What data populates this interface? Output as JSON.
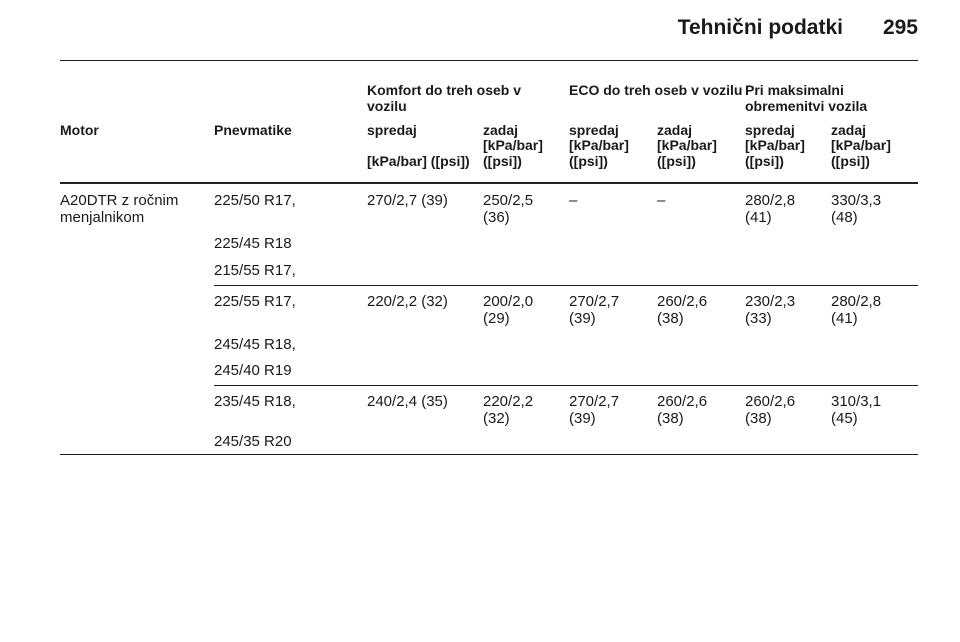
{
  "header": {
    "title": "Tehnični podatki",
    "page": "295"
  },
  "table": {
    "groups": [
      "Komfort do treh oseb v vozilu",
      "ECO do treh oseb v vozilu",
      "Pri maksimalni obremenitvi vozila"
    ],
    "columns": [
      "Motor",
      "Pnevmatike",
      "spredaj",
      "zadaj",
      "spredaj",
      "zadaj",
      "spredaj",
      "zadaj"
    ],
    "units": [
      "[kPa/bar] ([psi])",
      "[kPa/bar] ([psi])",
      "[kPa/bar] ([psi])",
      "[kPa/bar] ([psi])",
      "[kPa/bar] ([psi])",
      "[kPa/bar] ([psi])"
    ],
    "rows": [
      {
        "motor": "A20DTR z ročnim menjalnikom",
        "tyres": [
          "225/50 R17,",
          "225/45 R18",
          "215/55 R17,"
        ],
        "values": [
          "270/2,7 (39)",
          "250/2,5 (36)",
          "–",
          "–",
          "280/2,8 (41)",
          "330/3,3 (48)"
        ]
      },
      {
        "tyres": [
          "225/55 R17,",
          "245/45 R18,",
          "245/40 R19"
        ],
        "values": [
          "220/2,2 (32)",
          "200/2,0 (29)",
          "270/2,7 (39)",
          "260/2,6 (38)",
          "230/2,3 (33)",
          "280/2,8 (41)"
        ]
      },
      {
        "tyres": [
          "235/45 R18,",
          "245/35 R20"
        ],
        "values": [
          "240/2,4 (35)",
          "220/2,2 (32)",
          "270/2,7 (39)",
          "260/2,6 (38)",
          "260/2,6 (38)",
          "310/3,1 (45)"
        ]
      }
    ]
  }
}
